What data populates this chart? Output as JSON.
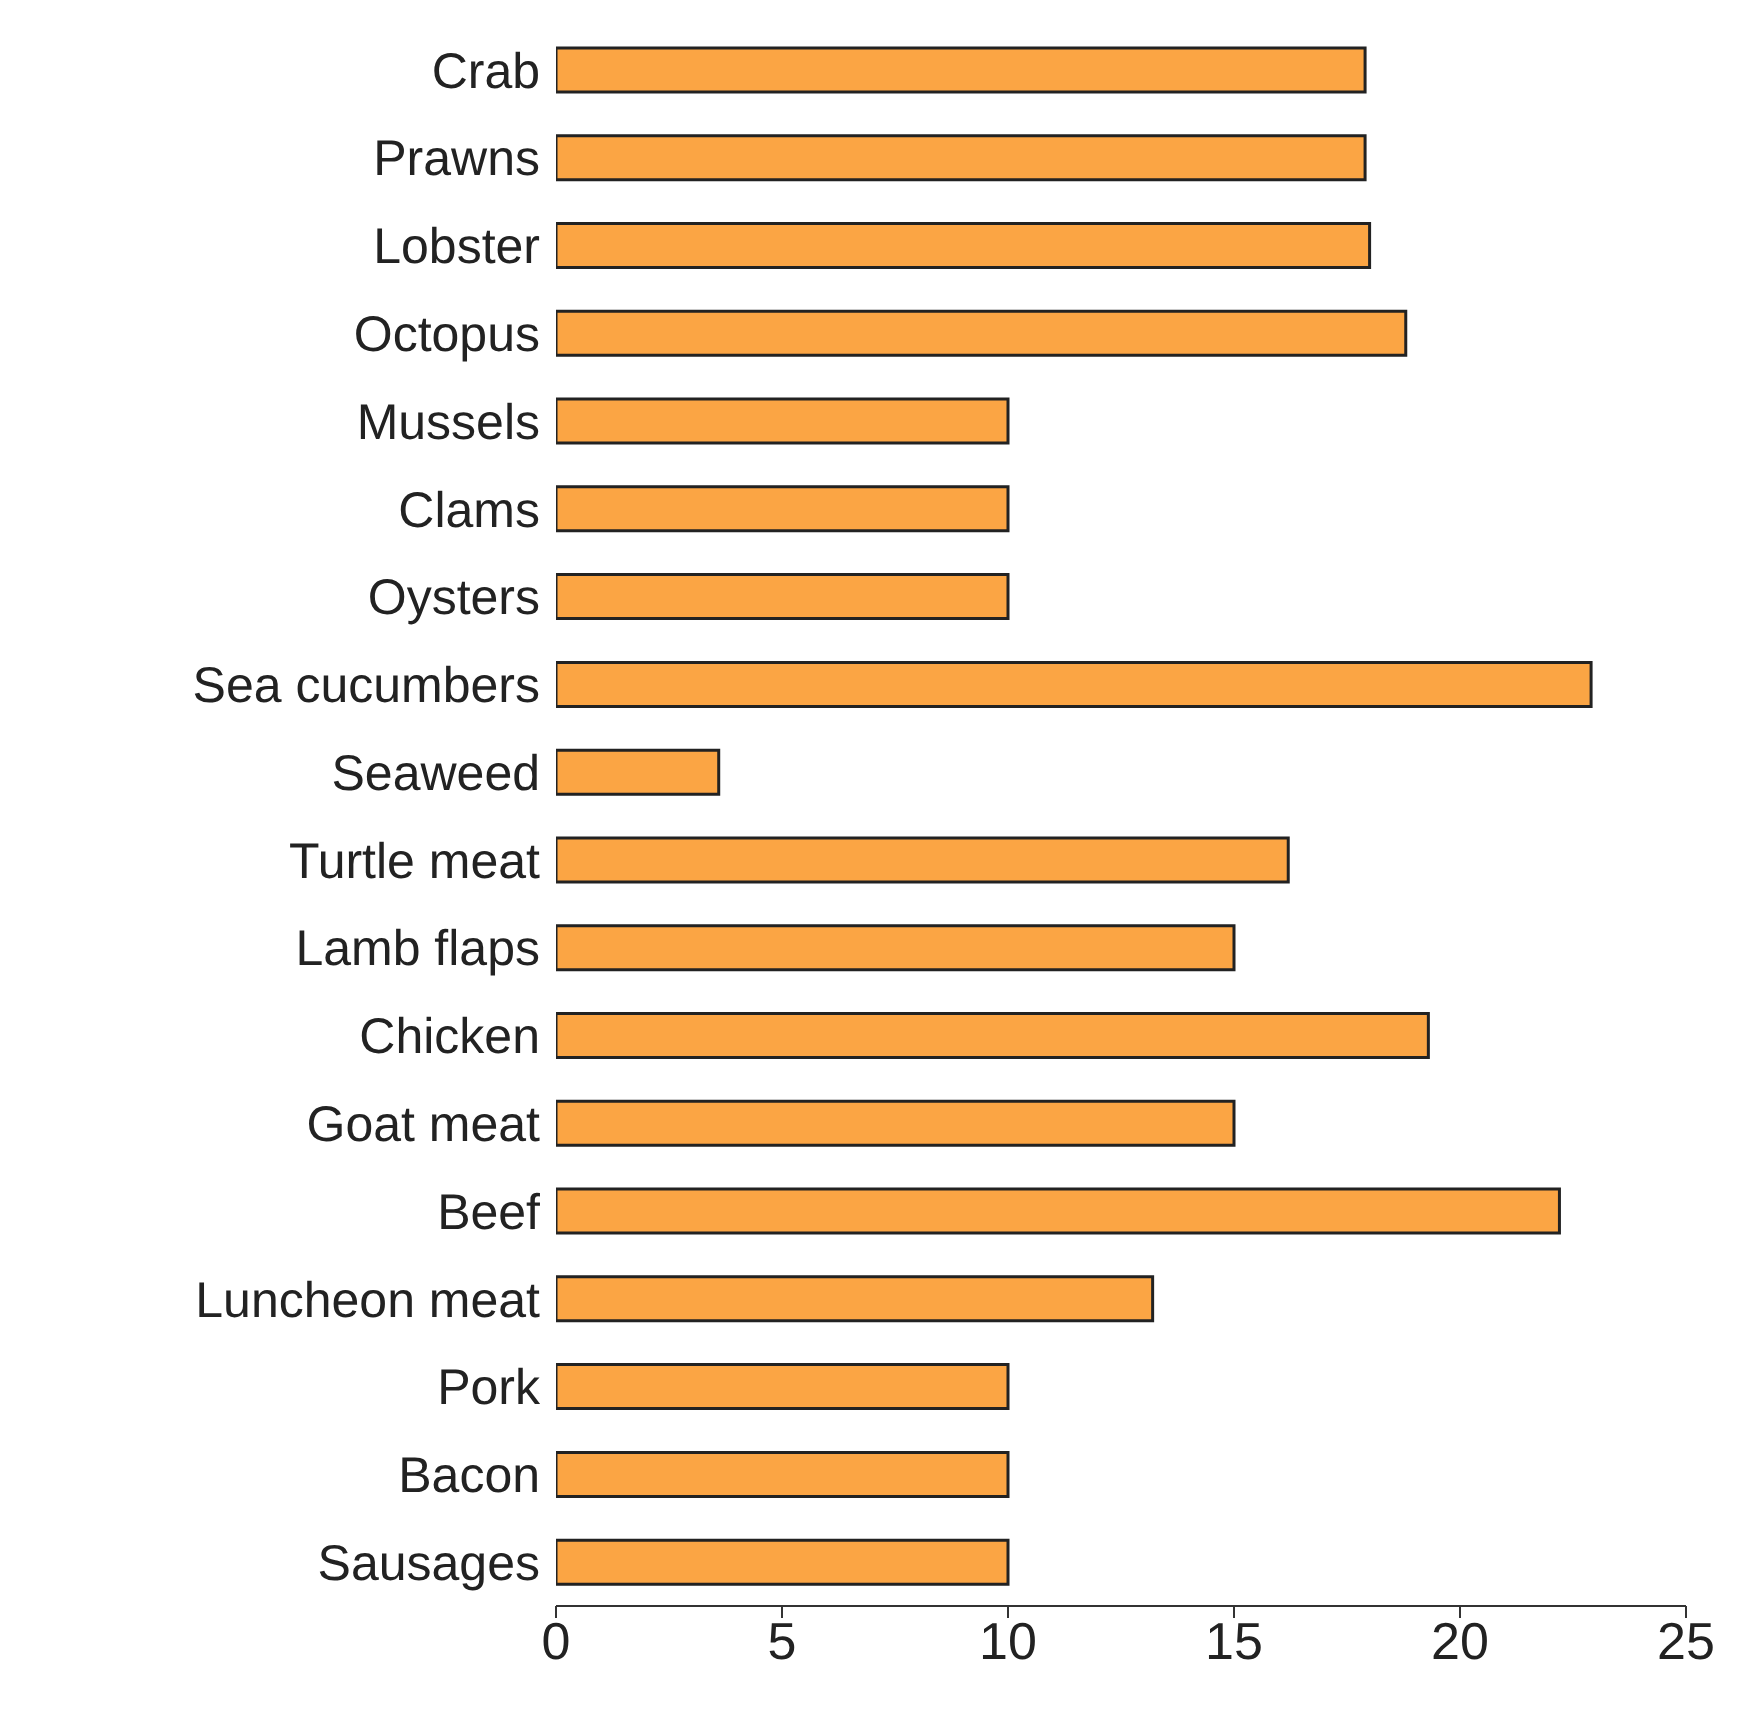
{
  "chart_data": {
    "type": "bar",
    "orientation": "horizontal",
    "categories": [
      "Crab",
      "Prawns",
      "Lobster",
      "Octopus",
      "Mussels",
      "Clams",
      "Oysters",
      "Sea cucumbers",
      "Seaweed",
      "Turtle meat",
      "Lamb flaps",
      "Chicken",
      "Goat meat",
      "Beef",
      "Luncheon meat",
      "Pork",
      "Bacon",
      "Sausages"
    ],
    "values": [
      17.9,
      17.9,
      18,
      18.8,
      10,
      10,
      10,
      22.9,
      3.6,
      16.2,
      15,
      19.3,
      15,
      22.2,
      13.2,
      10,
      10,
      10
    ],
    "color": "#fba544",
    "xlim": [
      0,
      25
    ],
    "xticks": [
      0,
      5,
      10,
      15,
      20,
      25
    ],
    "grid": false
  }
}
